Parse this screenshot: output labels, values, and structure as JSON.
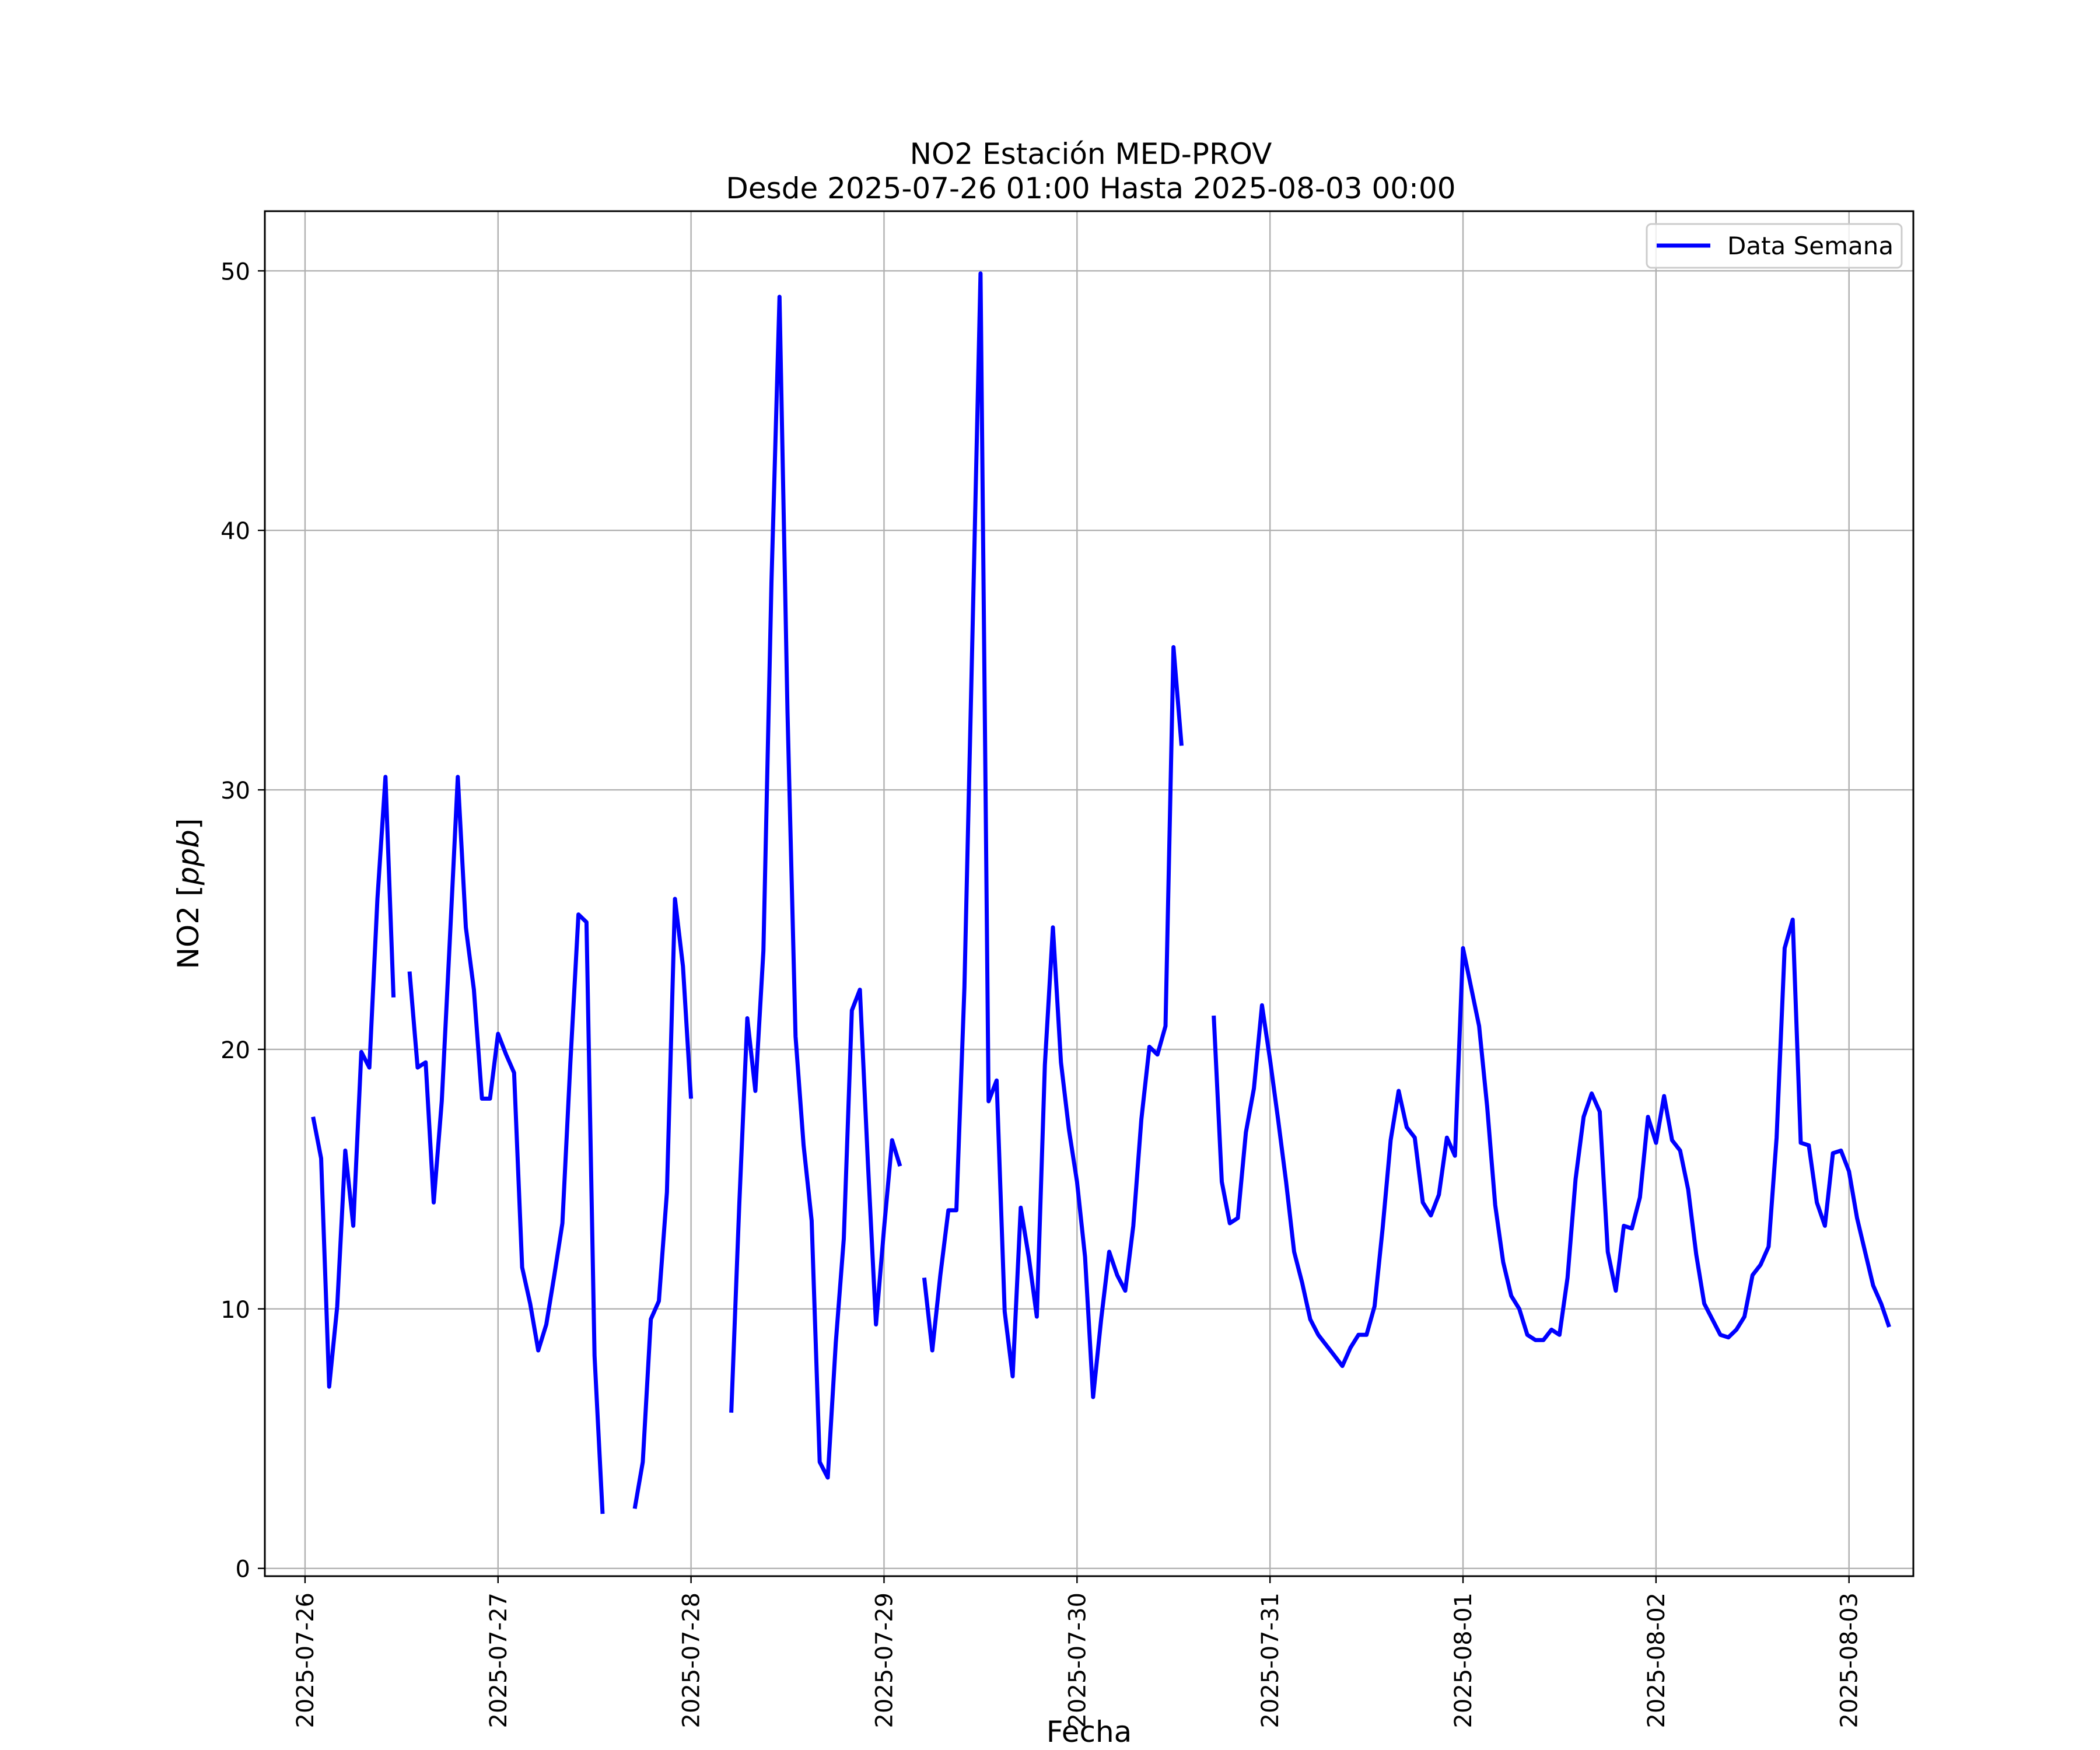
{
  "chart_data": {
    "type": "line",
    "title": "NO2 Estación MED-PROV",
    "subtitle": "Desde 2025-07-26 01:00 Hasta 2025-08-03 00:00",
    "xlabel": "Fecha",
    "ylabel": "NO2 [ppb]",
    "ylabel_prefix": "NO2 [",
    "ylabel_unit": "ppb",
    "ylabel_suffix": "]",
    "xlim": [
      "2025-07-25 19:00",
      "2025-08-03 08:00"
    ],
    "ylim": [
      -0.3,
      52.3
    ],
    "x_ticks": [
      "2025-07-26",
      "2025-07-27",
      "2025-07-28",
      "2025-07-29",
      "2025-07-30",
      "2025-07-31",
      "2025-08-01",
      "2025-08-02",
      "2025-08-03"
    ],
    "y_ticks": [
      0,
      10,
      20,
      30,
      40,
      50
    ],
    "grid": true,
    "legend_position": "top-right",
    "line_color": "#0000ff",
    "series": [
      {
        "name": "Data Semana",
        "start": "2025-07-26 01:00",
        "step_hours": 1,
        "values": [
          17.4,
          15.8,
          7.0,
          10.1,
          16.1,
          13.2,
          19.9,
          19.3,
          25.8,
          30.5,
          22.0,
          null,
          23.0,
          19.3,
          19.5,
          14.1,
          18.0,
          24.2,
          30.5,
          24.7,
          22.3,
          18.1,
          18.1,
          20.6,
          19.8,
          19.1,
          11.6,
          10.2,
          8.4,
          9.4,
          11.3,
          13.3,
          19.5,
          25.2,
          24.9,
          8.2,
          2.1,
          null,
          null,
          null,
          2.3,
          4.1,
          9.6,
          10.3,
          14.5,
          25.8,
          23.2,
          18.1,
          null,
          null,
          null,
          null,
          6.0,
          14.0,
          21.2,
          18.4,
          23.8,
          38.0,
          49.0,
          33.0,
          20.5,
          16.3,
          13.4,
          4.1,
          3.5,
          8.7,
          12.7,
          21.5,
          22.3,
          15.6,
          9.4,
          13.1,
          16.5,
          15.5,
          null,
          null,
          11.2,
          8.4,
          11.3,
          13.8,
          13.8,
          22.4,
          36.0,
          49.9,
          18.0,
          18.8,
          9.9,
          7.4,
          13.9,
          12.0,
          9.7,
          19.4,
          24.7,
          19.5,
          16.9,
          14.9,
          12.0,
          6.6,
          9.6,
          12.2,
          11.3,
          10.7,
          13.2,
          17.3,
          20.1,
          19.8,
          20.9,
          35.5,
          31.7,
          null,
          null,
          null,
          21.3,
          14.9,
          13.3,
          13.5,
          16.8,
          18.5,
          21.7,
          19.6,
          17.3,
          14.9,
          12.2,
          11.0,
          9.6,
          9.0,
          8.6,
          8.2,
          7.8,
          8.5,
          9.0,
          9.0,
          10.1,
          13.1,
          16.5,
          18.4,
          17.0,
          16.6,
          14.1,
          13.6,
          14.4,
          16.6,
          15.9,
          23.9,
          22.4,
          20.9,
          17.8,
          14.0,
          11.8,
          10.5,
          10.0,
          9.0,
          8.8,
          8.8,
          9.2,
          9.0,
          11.2,
          15.0,
          17.4,
          18.3,
          17.6,
          12.2,
          10.7,
          13.2,
          13.1,
          14.3,
          17.4,
          16.4,
          18.2,
          16.5,
          16.1,
          14.6,
          12.1,
          10.2,
          9.6,
          9.0,
          8.9,
          9.2,
          9.7,
          11.3,
          11.7,
          12.4,
          16.6,
          23.9,
          25.0,
          16.4,
          16.3,
          14.1,
          13.2,
          16.0,
          16.1,
          15.3,
          13.5,
          12.2,
          10.9,
          10.2,
          9.3
        ]
      }
    ]
  }
}
